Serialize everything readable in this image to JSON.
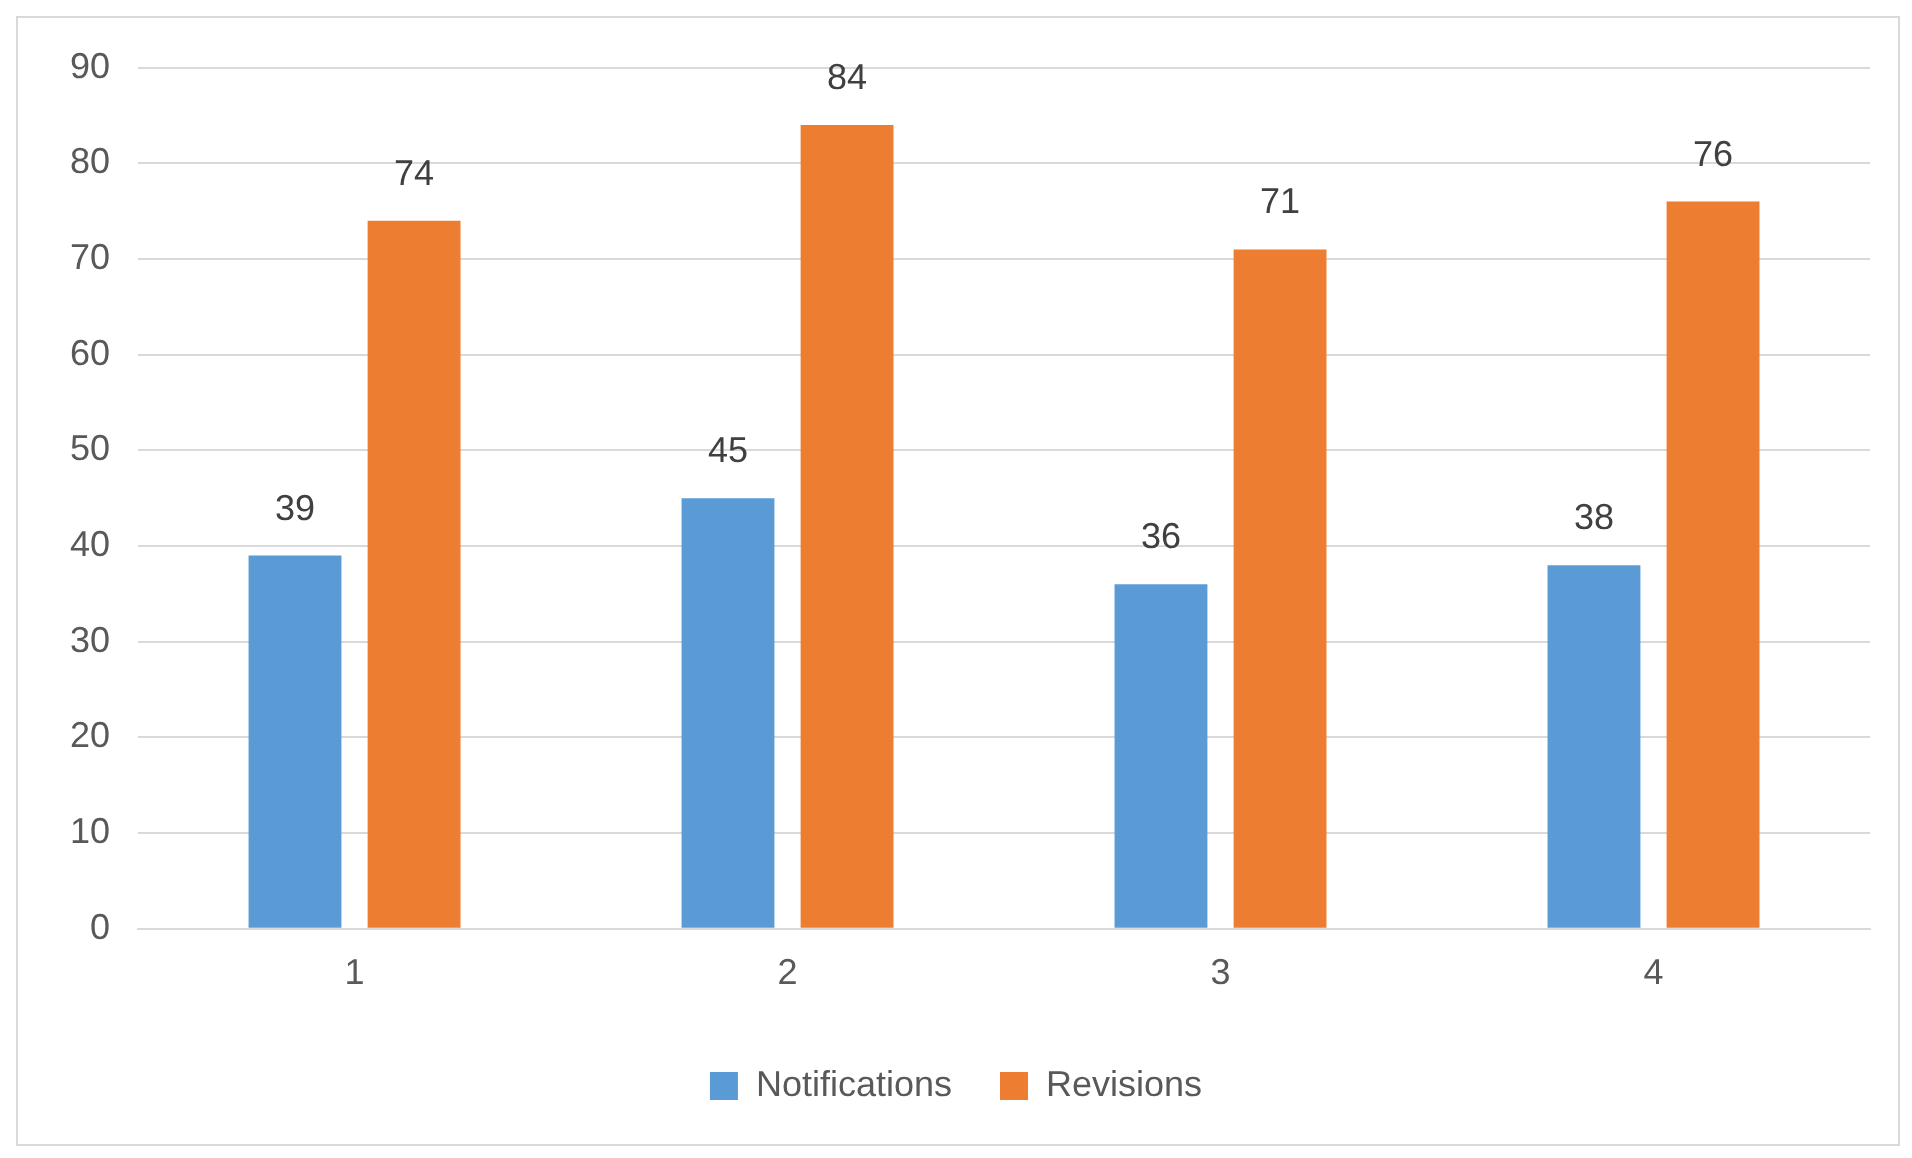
{
  "chart_data": {
    "type": "bar",
    "categories": [
      "1",
      "2",
      "3",
      "4"
    ],
    "series": [
      {
        "name": "Notifications",
        "color": "#5b9bd5",
        "values": [
          39,
          45,
          36,
          38
        ]
      },
      {
        "name": "Revisions",
        "color": "#ed7d31",
        "values": [
          74,
          84,
          71,
          76
        ]
      }
    ],
    "ylim": [
      0,
      90
    ],
    "yticks": [
      0,
      10,
      20,
      30,
      40,
      50,
      60,
      70,
      80,
      90
    ],
    "grid": "y",
    "legend": "bottom",
    "data_labels": true
  }
}
